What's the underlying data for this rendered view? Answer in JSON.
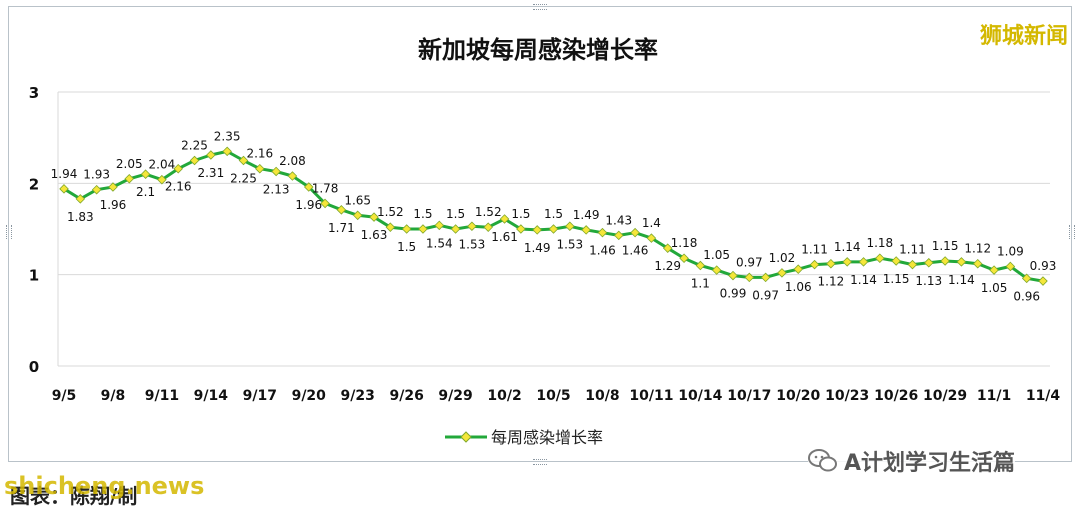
{
  "chart_data": {
    "type": "line",
    "title": "新加坡每周感染增长率",
    "xlabel": "",
    "ylabel": "",
    "ylim": [
      0,
      3
    ],
    "yticks": [
      0,
      1,
      2,
      3
    ],
    "grid": true,
    "legend_position": "bottom",
    "categories": [
      "9/5",
      "9/6",
      "9/7",
      "9/8",
      "9/9",
      "9/10",
      "9/11",
      "9/12",
      "9/13",
      "9/14",
      "9/15",
      "9/16",
      "9/17",
      "9/18",
      "9/19",
      "9/20",
      "9/21",
      "9/22",
      "9/23",
      "9/24",
      "9/25",
      "9/26",
      "9/27",
      "9/28",
      "9/29",
      "9/30",
      "10/1",
      "10/2",
      "10/3",
      "10/4",
      "10/5",
      "10/6",
      "10/7",
      "10/8",
      "10/9",
      "10/10",
      "10/11",
      "10/12",
      "10/13",
      "10/14",
      "10/15",
      "10/16",
      "10/17",
      "10/18",
      "10/19",
      "10/20",
      "10/21",
      "10/22",
      "10/23",
      "10/24",
      "10/25",
      "10/26",
      "10/27",
      "10/28",
      "10/29",
      "10/30",
      "10/31",
      "11/1",
      "11/2",
      "11/3",
      "11/4"
    ],
    "x_tick_labels": [
      "9/5",
      "9/8",
      "9/11",
      "9/14",
      "9/17",
      "9/20",
      "9/23",
      "9/26",
      "9/29",
      "10/2",
      "10/5",
      "10/8",
      "10/11",
      "10/14",
      "10/17",
      "10/20",
      "10/23",
      "10/26",
      "10/29",
      "11/1",
      "11/4"
    ],
    "series": [
      {
        "name": "每周感染增长率",
        "color": "#22a83a",
        "marker_color": "#f5e63a",
        "values": [
          1.94,
          1.83,
          1.93,
          1.96,
          2.05,
          2.1,
          2.04,
          2.16,
          2.25,
          2.31,
          2.35,
          2.25,
          2.16,
          2.13,
          2.08,
          1.96,
          1.78,
          1.71,
          1.65,
          1.63,
          1.52,
          1.5,
          1.5,
          1.54,
          1.5,
          1.53,
          1.52,
          1.61,
          1.5,
          1.49,
          1.5,
          1.53,
          1.49,
          1.46,
          1.43,
          1.46,
          1.4,
          1.29,
          1.18,
          1.1,
          1.05,
          0.99,
          0.97,
          0.97,
          1.02,
          1.06,
          1.11,
          1.12,
          1.14,
          1.14,
          1.18,
          1.15,
          1.11,
          1.13,
          1.15,
          1.14,
          1.12,
          1.05,
          1.09,
          0.96,
          0.93
        ]
      }
    ]
  },
  "watermark": "狮城新闻",
  "footer_source": "图表：陈翔/制",
  "footer_url": "shicheng.news",
  "wechat_text": "A计划学习生活篇"
}
